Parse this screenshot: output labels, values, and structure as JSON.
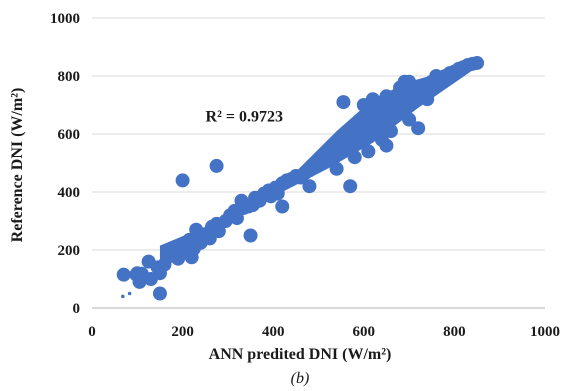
{
  "chart_data": {
    "type": "scatter",
    "xlabel": "ANN predited DNI (W/m²)",
    "ylabel": "Reference DNI (W/m²)",
    "xlim": [
      0,
      1000
    ],
    "ylim": [
      0,
      1000
    ],
    "xticks": [
      "0",
      "200",
      "400",
      "600",
      "800",
      "1000"
    ],
    "yticks": [
      "0",
      "200",
      "400",
      "600",
      "800",
      "1000"
    ],
    "grid": "horizontal",
    "annotation": {
      "text": "R² = 0.9723",
      "x": 350,
      "y": 660
    },
    "caption": "(b)",
    "color": "#4472C4",
    "points": [
      [
        68,
        40
      ],
      [
        83,
        50
      ],
      [
        70,
        115
      ],
      [
        100,
        120
      ],
      [
        110,
        118
      ],
      [
        105,
        90
      ],
      [
        98,
        115
      ],
      [
        130,
        100
      ],
      [
        125,
        160
      ],
      [
        145,
        140
      ],
      [
        150,
        120
      ],
      [
        150,
        50
      ],
      [
        160,
        150
      ],
      [
        170,
        195
      ],
      [
        175,
        180
      ],
      [
        185,
        210
      ],
      [
        190,
        170
      ],
      [
        200,
        200
      ],
      [
        210,
        190
      ],
      [
        215,
        235
      ],
      [
        225,
        205
      ],
      [
        230,
        270
      ],
      [
        240,
        225
      ],
      [
        220,
        175
      ],
      [
        250,
        250
      ],
      [
        260,
        240
      ],
      [
        265,
        280
      ],
      [
        275,
        290
      ],
      [
        280,
        265
      ],
      [
        295,
        300
      ],
      [
        305,
        320
      ],
      [
        315,
        335
      ],
      [
        320,
        310
      ],
      [
        330,
        370
      ],
      [
        335,
        345
      ],
      [
        345,
        350
      ],
      [
        355,
        355
      ],
      [
        360,
        380
      ],
      [
        370,
        370
      ],
      [
        380,
        395
      ],
      [
        390,
        405
      ],
      [
        395,
        385
      ],
      [
        405,
        415
      ],
      [
        410,
        395
      ],
      [
        420,
        430
      ],
      [
        430,
        440
      ],
      [
        440,
        445
      ],
      [
        450,
        455
      ],
      [
        460,
        450
      ],
      [
        470,
        465
      ],
      [
        480,
        475
      ],
      [
        490,
        490
      ],
      [
        500,
        495
      ],
      [
        505,
        520
      ],
      [
        515,
        510
      ],
      [
        520,
        540
      ],
      [
        530,
        525
      ],
      [
        540,
        560
      ],
      [
        545,
        545
      ],
      [
        550,
        575
      ],
      [
        560,
        560
      ],
      [
        570,
        590
      ],
      [
        575,
        600
      ],
      [
        585,
        585
      ],
      [
        595,
        610
      ],
      [
        600,
        630
      ],
      [
        610,
        620
      ],
      [
        615,
        650
      ],
      [
        625,
        640
      ],
      [
        630,
        665
      ],
      [
        640,
        660
      ],
      [
        645,
        690
      ],
      [
        655,
        680
      ],
      [
        660,
        700
      ],
      [
        670,
        690
      ],
      [
        680,
        710
      ],
      [
        690,
        730
      ],
      [
        700,
        720
      ],
      [
        705,
        745
      ],
      [
        715,
        740
      ],
      [
        720,
        760
      ],
      [
        730,
        765
      ],
      [
        740,
        770
      ],
      [
        750,
        780
      ],
      [
        760,
        785
      ],
      [
        770,
        795
      ],
      [
        780,
        800
      ],
      [
        790,
        810
      ],
      [
        800,
        815
      ],
      [
        810,
        825
      ],
      [
        820,
        830
      ],
      [
        830,
        838
      ],
      [
        840,
        842
      ],
      [
        850,
        845
      ],
      [
        200,
        440
      ],
      [
        275,
        490
      ],
      [
        555,
        710
      ],
      [
        570,
        420
      ],
      [
        350,
        250
      ],
      [
        420,
        350
      ],
      [
        480,
        420
      ],
      [
        600,
        700
      ],
      [
        650,
        730
      ],
      [
        700,
        780
      ],
      [
        720,
        620
      ],
      [
        650,
        560
      ],
      [
        580,
        520
      ],
      [
        540,
        480
      ],
      [
        620,
        720
      ],
      [
        680,
        760
      ],
      [
        610,
        540
      ],
      [
        660,
        610
      ],
      [
        700,
        650
      ],
      [
        740,
        720
      ],
      [
        760,
        800
      ],
      [
        690,
        780
      ],
      [
        640,
        580
      ]
    ]
  }
}
